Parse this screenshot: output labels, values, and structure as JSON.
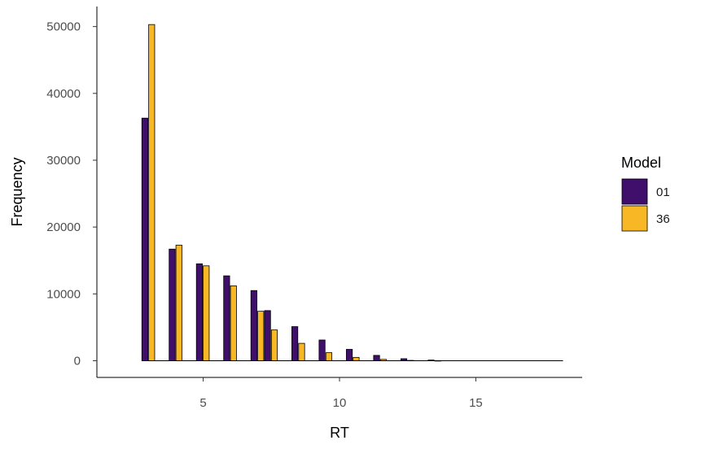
{
  "chart_data": {
    "type": "bar",
    "xlabel": "RT",
    "ylabel": "Frequency",
    "xlim": [
      1.1,
      18.9
    ],
    "ylim": [
      -2500,
      53000
    ],
    "xticks": [
      5,
      10,
      15
    ],
    "yticks": [
      0,
      10000,
      20000,
      30000,
      40000,
      50000
    ],
    "bin_width": 0.5,
    "legend": {
      "title": "Model",
      "position": "right"
    },
    "series": [
      {
        "name": "01",
        "color": "#3f0f6b",
        "x": [
          3,
          4,
          5,
          6,
          7,
          7.5,
          8.5,
          9.5,
          10.5,
          11.5,
          12.5,
          13.5
        ],
        "values": [
          36300,
          16700,
          14500,
          12700,
          10500,
          7500,
          5100,
          3100,
          1700,
          800,
          300,
          100
        ]
      },
      {
        "name": "36",
        "color": "#f8b724",
        "x": [
          3,
          4,
          5,
          6,
          7,
          7.5,
          8.5,
          9.5,
          10.5,
          11.5,
          12.5,
          13.5
        ],
        "values": [
          50300,
          17300,
          14200,
          11200,
          7400,
          4600,
          2600,
          1200,
          500,
          200,
          50,
          20
        ]
      }
    ],
    "extent_x_max": 18.2
  }
}
